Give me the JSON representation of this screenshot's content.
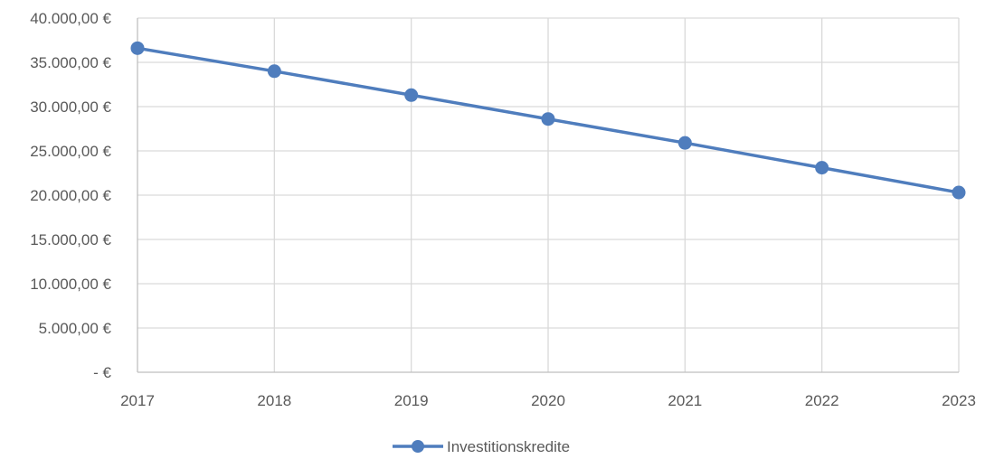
{
  "chart_data": {
    "type": "line",
    "categories": [
      "2017",
      "2018",
      "2019",
      "2020",
      "2021",
      "2022",
      "2023"
    ],
    "series": [
      {
        "name": "Investitionskredite",
        "values": [
          36600,
          34000,
          31300,
          28600,
          25900,
          23100,
          20300
        ],
        "color": "#4f7dbd"
      }
    ],
    "y_ticks": [
      {
        "value": 0,
        "label": "-   €"
      },
      {
        "value": 5000,
        "label": "5.000,00 €"
      },
      {
        "value": 10000,
        "label": "10.000,00 €"
      },
      {
        "value": 15000,
        "label": "15.000,00 €"
      },
      {
        "value": 20000,
        "label": "20.000,00 €"
      },
      {
        "value": 25000,
        "label": "25.000,00 €"
      },
      {
        "value": 30000,
        "label": "30.000,00 €"
      },
      {
        "value": 35000,
        "label": "35.000,00 €"
      },
      {
        "value": 40000,
        "label": "40.000,00 €"
      }
    ],
    "ylim": [
      0,
      40000
    ],
    "grid": true,
    "legend_position": "bottom-center",
    "gridline_color": "#d9d9d9",
    "axis_color": "#bfbfbf",
    "text_color": "#595959"
  }
}
